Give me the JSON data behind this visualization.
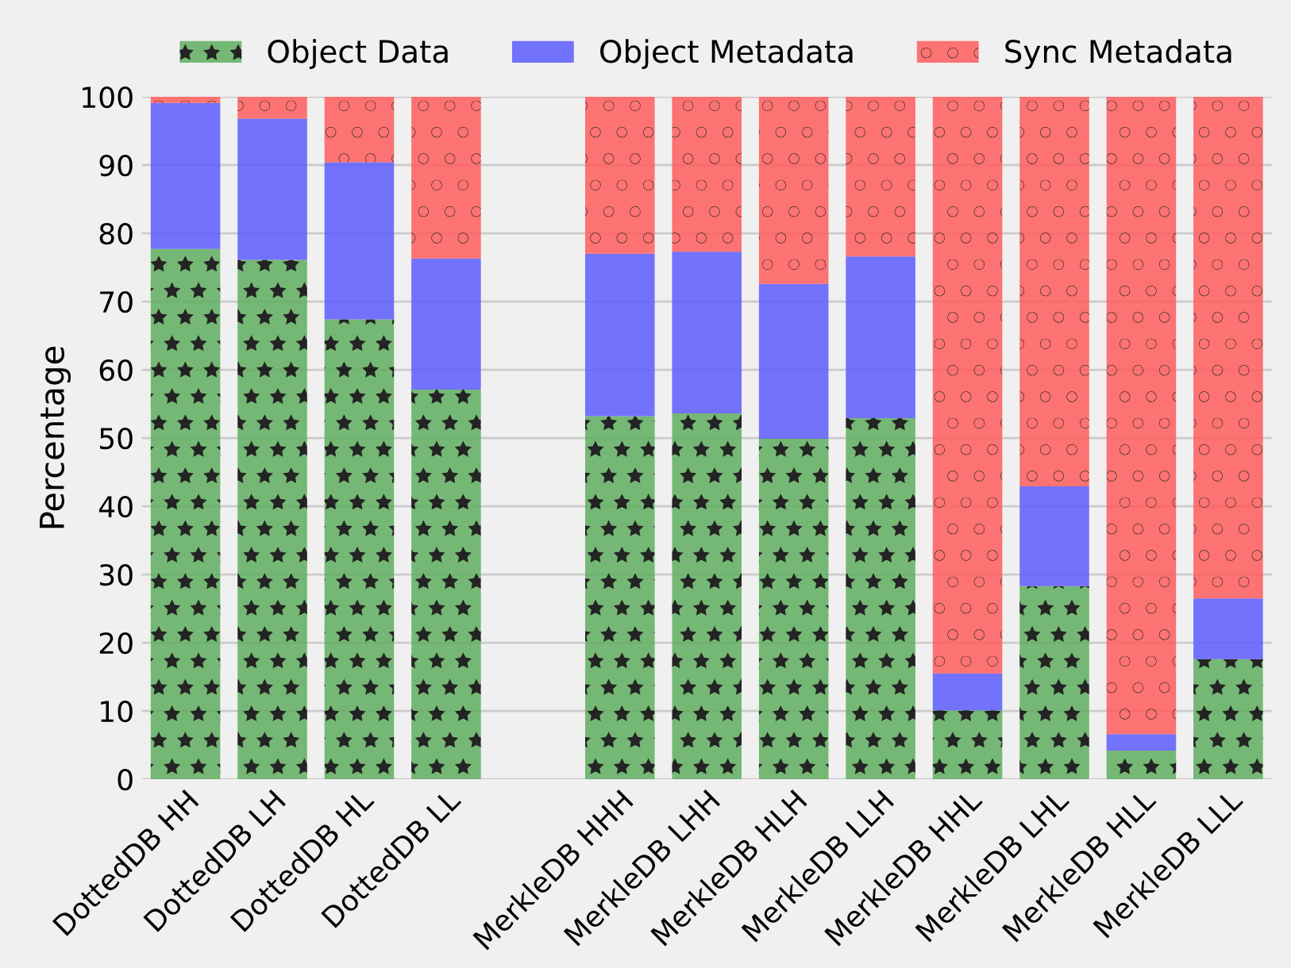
{
  "chart_data": {
    "type": "bar",
    "stacked": true,
    "ylabel": "Percentage",
    "categories": [
      "DottedDB HH",
      "DottedDB LH",
      "DottedDB HL",
      "DottedDB LL",
      null,
      "MerkleDB HHH",
      "MerkleDB LHH",
      "MerkleDB HLH",
      "MerkleDB LLH",
      "MerkleDB HHL",
      "MerkleDB LHL",
      "MerkleDB HLL",
      "MerkleDB LLL"
    ],
    "series": [
      {
        "name": "Object Data",
        "color": "#5fae5f",
        "values": [
          77.7,
          76.1,
          67.4,
          57.1,
          null,
          53.2,
          53.6,
          49.9,
          52.9,
          10.1,
          28.3,
          4.2,
          17.6
        ]
      },
      {
        "name": "Object Metadata",
        "color": "#5c5cff",
        "values": [
          21.4,
          20.7,
          23.0,
          19.2,
          null,
          23.8,
          23.7,
          22.7,
          23.7,
          5.4,
          14.6,
          2.4,
          8.9
        ]
      },
      {
        "name": "Sync Metadata",
        "color": "#ff5c5c",
        "values": [
          0.9,
          3.2,
          9.6,
          23.7,
          null,
          23.0,
          22.7,
          27.4,
          23.4,
          84.5,
          57.1,
          93.4,
          73.5
        ]
      }
    ],
    "ylim": [
      0,
      100
    ],
    "yticks": [
      0,
      10,
      20,
      30,
      40,
      50,
      60,
      70,
      80,
      90,
      100
    ],
    "grid": "y",
    "legend": "top"
  }
}
